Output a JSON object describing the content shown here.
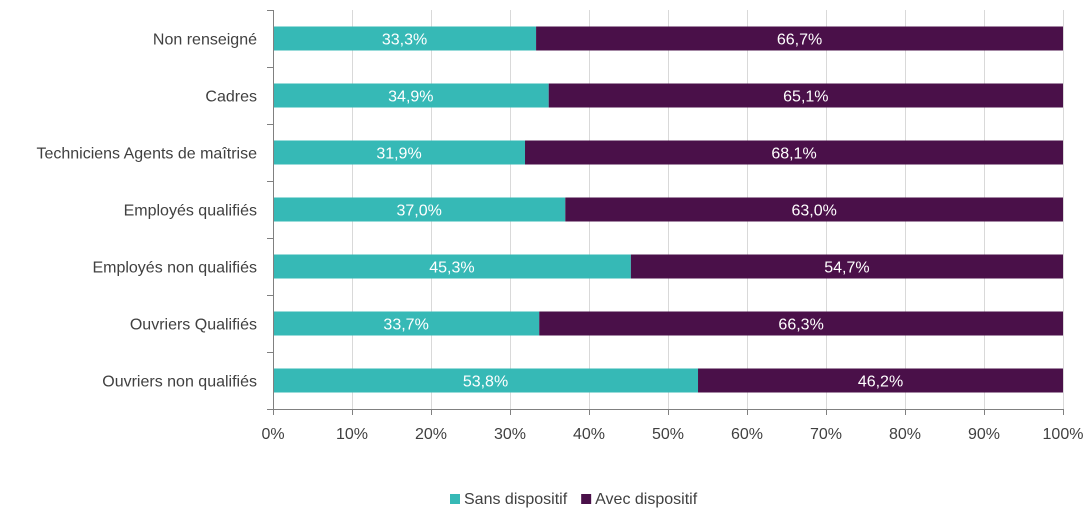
{
  "chart_data": {
    "type": "bar",
    "orientation": "horizontal",
    "stacked": true,
    "categories": [
      "Non renseigné",
      "Cadres",
      "Techniciens Agents de maîtrise",
      "Employés qualifiés",
      "Employés non qualifiés",
      "Ouvriers Qualifiés",
      "Ouvriers non qualifiés"
    ],
    "series": [
      {
        "name": "Sans dispositif",
        "color": "#36b9b6",
        "values": [
          33.3,
          34.9,
          31.9,
          37.0,
          45.3,
          33.7,
          53.8
        ],
        "labels": [
          "33,3%",
          "34,9%",
          "31,9%",
          "37,0%",
          "45,3%",
          "33,7%",
          "53,8%"
        ]
      },
      {
        "name": "Avec dispositif",
        "color": "#4a1049",
        "values": [
          66.7,
          65.1,
          68.1,
          63.0,
          54.7,
          66.3,
          46.2
        ],
        "labels": [
          "66,7%",
          "65,1%",
          "68,1%",
          "63,0%",
          "54,7%",
          "66,3%",
          "46,2%"
        ]
      }
    ],
    "xlim": [
      0,
      100
    ],
    "xticks": [
      "0%",
      "10%",
      "20%",
      "30%",
      "40%",
      "50%",
      "60%",
      "70%",
      "80%",
      "90%",
      "100%"
    ],
    "grid": "vertical",
    "legend": "bottom-center",
    "title": "",
    "xlabel": "",
    "ylabel": ""
  }
}
